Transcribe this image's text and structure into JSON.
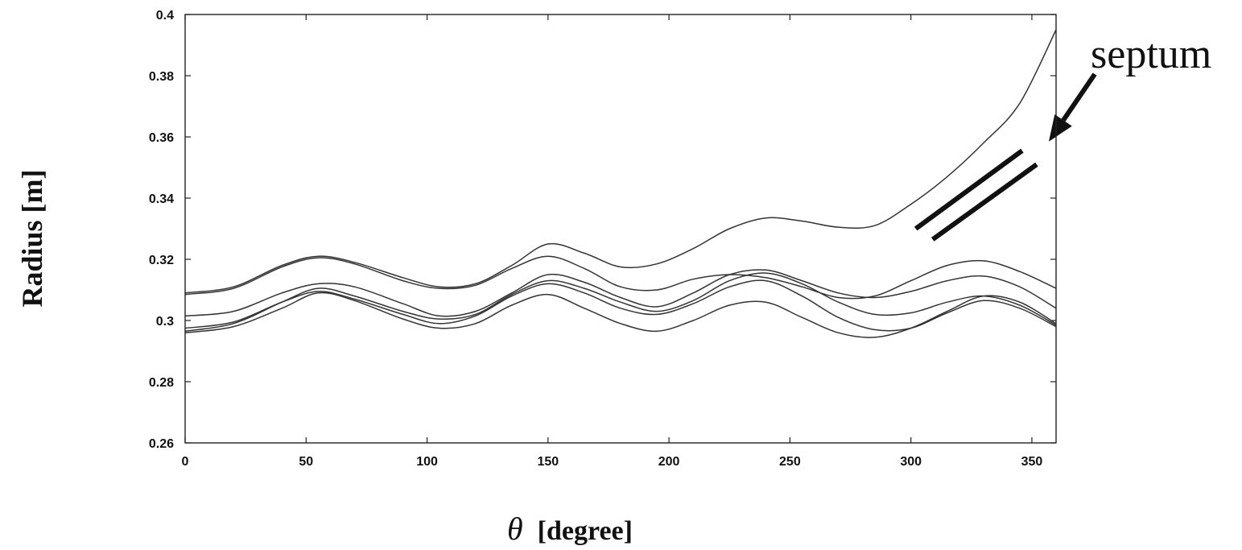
{
  "chart_data": {
    "type": "line",
    "title": "",
    "xlabel_symbol": "θ",
    "xlabel_unit": "[degree]",
    "ylabel": "Radius [m]",
    "xlim": [
      0,
      360
    ],
    "ylim": [
      0.26,
      0.4
    ],
    "x_ticks": [
      0,
      50,
      100,
      150,
      200,
      250,
      300,
      350
    ],
    "y_ticks": [
      0.26,
      0.28,
      0.3,
      0.32,
      0.34,
      0.36,
      0.38,
      0.4
    ],
    "x_tick_labels": [
      "0",
      "50",
      "100",
      "150",
      "200",
      "250",
      "300",
      "350"
    ],
    "y_tick_labels": [
      "0.26",
      "0.28",
      "0.3",
      "0.32",
      "0.34",
      "0.36",
      "0.38",
      "0.4"
    ],
    "grid": false,
    "legend": "none",
    "x": [
      0,
      20,
      40,
      55,
      70,
      90,
      105,
      120,
      135,
      150,
      165,
      180,
      195,
      210,
      225,
      240,
      255,
      270,
      285,
      300,
      315,
      330,
      345,
      360
    ],
    "series": [
      {
        "values": [
          0.309,
          0.311,
          0.318,
          0.321,
          0.319,
          0.314,
          0.311,
          0.312,
          0.318,
          0.325,
          0.322,
          0.3175,
          0.3185,
          0.3235,
          0.33,
          0.3335,
          0.3325,
          0.3305,
          0.331,
          0.338,
          0.347,
          0.358,
          0.371,
          0.395
        ]
      },
      {
        "values": [
          0.3085,
          0.3105,
          0.3175,
          0.3205,
          0.3185,
          0.313,
          0.3105,
          0.3115,
          0.317,
          0.321,
          0.317,
          0.311,
          0.31,
          0.3135,
          0.315,
          0.314,
          0.311,
          0.3075,
          0.308,
          0.313,
          0.318,
          0.3195,
          0.316,
          0.3105
        ]
      },
      {
        "values": [
          0.3015,
          0.303,
          0.309,
          0.312,
          0.311,
          0.3055,
          0.3015,
          0.303,
          0.309,
          0.315,
          0.3125,
          0.3075,
          0.3045,
          0.309,
          0.315,
          0.3165,
          0.313,
          0.309,
          0.3075,
          0.3095,
          0.313,
          0.3145,
          0.311,
          0.304
        ]
      },
      {
        "values": [
          0.2965,
          0.299,
          0.306,
          0.3105,
          0.308,
          0.303,
          0.3005,
          0.302,
          0.3085,
          0.313,
          0.3105,
          0.306,
          0.303,
          0.3065,
          0.313,
          0.3155,
          0.312,
          0.306,
          0.302,
          0.3025,
          0.306,
          0.308,
          0.305,
          0.2985
        ]
      },
      {
        "values": [
          0.2975,
          0.2995,
          0.306,
          0.3095,
          0.307,
          0.302,
          0.299,
          0.3015,
          0.308,
          0.312,
          0.309,
          0.304,
          0.302,
          0.3055,
          0.311,
          0.313,
          0.308,
          0.301,
          0.297,
          0.2975,
          0.3025,
          0.3065,
          0.304,
          0.298
        ]
      },
      {
        "values": [
          0.296,
          0.298,
          0.304,
          0.309,
          0.3065,
          0.3005,
          0.2975,
          0.299,
          0.305,
          0.3085,
          0.304,
          0.299,
          0.2965,
          0.3,
          0.305,
          0.306,
          0.301,
          0.296,
          0.2945,
          0.2975,
          0.303,
          0.308,
          0.306,
          0.299
        ]
      }
    ],
    "annotations": [
      {
        "text": "septum"
      }
    ],
    "septum_lines": [
      {
        "x1": 302,
        "y1": 0.33,
        "x2": 346,
        "y2": 0.3555
      },
      {
        "x1": 309,
        "y1": 0.3265,
        "x2": 352,
        "y2": 0.351
      }
    ],
    "arrow": {
      "x1": 376,
      "y1": 0.3805,
      "x2": 357,
      "y2": 0.3585
    }
  }
}
